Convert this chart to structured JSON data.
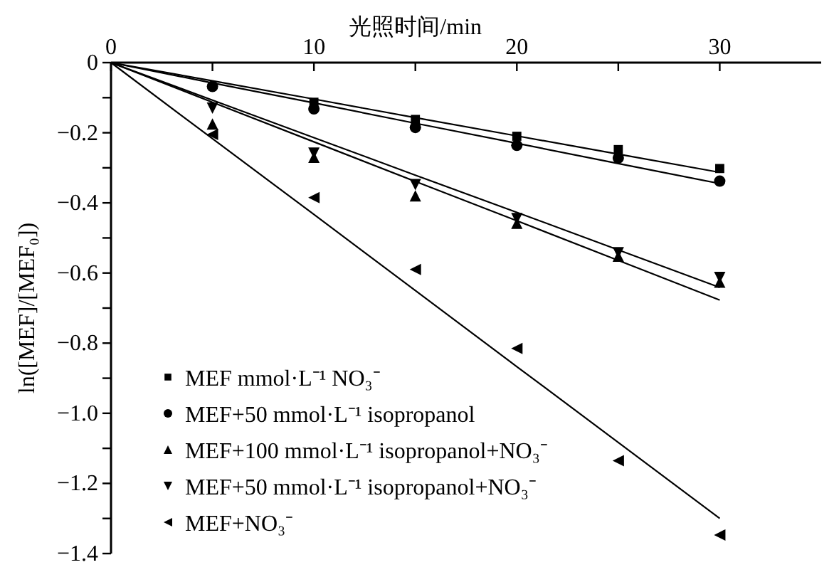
{
  "chart_data": {
    "type": "scatter",
    "xlabel": "光照时间/min",
    "ylabel": "ln([MEF]/[MEF₀])",
    "x": [
      0,
      5,
      10,
      15,
      20,
      25,
      30
    ],
    "xlim": [
      0,
      35
    ],
    "xticks": [
      0,
      {
        "value": 5,
        "label": null
      },
      10,
      {
        "value": 15,
        "label": null
      },
      20,
      {
        "value": 25,
        "label": null
      },
      30
    ],
    "ylim": [
      -1.4,
      0
    ],
    "yticks": [
      0,
      {
        "value": -0.1,
        "label": null
      },
      -0.2,
      {
        "value": -0.3,
        "label": null
      },
      -0.4,
      {
        "value": -0.5,
        "label": null
      },
      -0.6,
      {
        "value": -0.7,
        "label": null
      },
      -0.8,
      {
        "value": -0.9,
        "label": null
      },
      {
        "value": -1.0,
        "label": "−1.0"
      },
      {
        "value": -1.1,
        "label": null
      },
      -1.2,
      {
        "value": -1.3,
        "label": null
      },
      -1.4
    ],
    "grid": false,
    "legend": "bottom left",
    "series": [
      {
        "name": "MEF mmol·L⁻¹ NO₃⁻",
        "marker": "square",
        "color": "#000000",
        "values": [
          null,
          null,
          -0.113,
          -0.162,
          -0.21,
          -0.248,
          -0.302
        ]
      },
      {
        "name": "MEF+50 mmol·L⁻¹ isopropanol",
        "marker": "circle",
        "color": "#000000",
        "values": [
          null,
          -0.068,
          -0.132,
          -0.185,
          -0.236,
          -0.272,
          -0.338
        ]
      },
      {
        "name": "MEF+100 mmol·L⁻¹ isopropanol+NO₃⁻",
        "marker": "triangle",
        "color": "#000000",
        "values": [
          null,
          -0.175,
          -0.27,
          -0.38,
          -0.458,
          -0.552,
          -0.626
        ]
      },
      {
        "name": "MEF+50 mmol·L⁻¹  isopropanol+NO₃⁻",
        "marker": "triangle-down",
        "color": "#000000",
        "values": [
          null,
          -0.13,
          -0.258,
          -0.348,
          -0.445,
          -0.542,
          -0.613
        ]
      },
      {
        "name": "MEF+NO₃⁻",
        "marker": "triangle-left",
        "color": "#000000",
        "values": [
          null,
          -0.205,
          -0.385,
          -0.59,
          -0.815,
          -1.135,
          -1.347
        ]
      },
      {
        "type": "line",
        "color": "#000000",
        "values": [
          0,
          -0.052,
          -0.104,
          -0.157,
          -0.209,
          -0.261,
          -0.313
        ]
      },
      {
        "type": "line",
        "color": "#000000",
        "values": [
          0,
          -0.058,
          -0.115,
          -0.173,
          -0.23,
          -0.288,
          -0.345
        ]
      },
      {
        "type": "line",
        "color": "#000000",
        "values": [
          0,
          -0.113,
          -0.226,
          -0.339,
          -0.451,
          -0.564,
          -0.677
        ]
      },
      {
        "type": "line",
        "color": "#000000",
        "values": [
          0,
          -0.107,
          -0.214,
          -0.321,
          -0.427,
          -0.534,
          -0.641
        ]
      },
      {
        "type": "line",
        "color": "#000000",
        "values": [
          0,
          -0.217,
          -0.433,
          -0.65,
          -0.867,
          -1.083,
          -1.3
        ]
      }
    ]
  }
}
